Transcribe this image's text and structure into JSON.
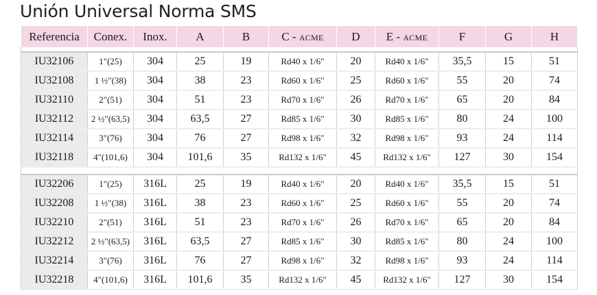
{
  "title": "Unión Universal Norma SMS",
  "headers": [
    "Referencia",
    "Conex.",
    "Inox.",
    "A",
    "B",
    "C - ",
    "D",
    "E - ",
    "F",
    "G",
    "H"
  ],
  "header_smallcaps": {
    "c": "ACME",
    "e": "ACME"
  },
  "groups": [
    {
      "rows": [
        [
          "IU32106",
          "1\"(25)",
          "304",
          "25",
          "19",
          "Rd40 x 1/6\"",
          "20",
          "Rd40 x 1/6\"",
          "35,5",
          "15",
          "51"
        ],
        [
          "IU32108",
          "1 ½\"(38)",
          "304",
          "38",
          "23",
          "Rd60 x 1/6\"",
          "25",
          "Rd60 x 1/6\"",
          "55",
          "20",
          "74"
        ],
        [
          "IU32110",
          "2\"(51)",
          "304",
          "51",
          "23",
          "Rd70 x 1/6\"",
          "26",
          "Rd70 x 1/6\"",
          "65",
          "20",
          "84"
        ],
        [
          "IU32112",
          "2 ½\"(63,5)",
          "304",
          "63,5",
          "27",
          "Rd85 x 1/6\"",
          "30",
          "Rd85 x 1/6\"",
          "80",
          "24",
          "100"
        ],
        [
          "IU32114",
          "3\"(76)",
          "304",
          "76",
          "27",
          "Rd98 x 1/6\"",
          "32",
          "Rd98 x 1/6\"",
          "93",
          "24",
          "114"
        ],
        [
          "IU32118",
          "4\"(101,6)",
          "304",
          "101,6",
          "35",
          "Rd132 x 1/6\"",
          "45",
          "Rd132 x 1/6\"",
          "127",
          "30",
          "154"
        ]
      ]
    },
    {
      "rows": [
        [
          "IU32206",
          "1\"(25)",
          "316L",
          "25",
          "19",
          "Rd40 x 1/6\"",
          "20",
          "Rd40 x 1/6\"",
          "35,5",
          "15",
          "51"
        ],
        [
          "IU32208",
          "1 ½\"(38)",
          "316L",
          "38",
          "23",
          "Rd60 x 1/6\"",
          "25",
          "Rd60 x 1/6\"",
          "55",
          "20",
          "74"
        ],
        [
          "IU32210",
          "2\"(51)",
          "316L",
          "51",
          "23",
          "Rd70 x 1/6\"",
          "26",
          "Rd70 x 1/6\"",
          "65",
          "20",
          "84"
        ],
        [
          "IU32212",
          "2 ½\"(63,5)",
          "316L",
          "63,5",
          "27",
          "Rd85 x 1/6\"",
          "30",
          "Rd85 x 1/6\"",
          "80",
          "24",
          "100"
        ],
        [
          "IU32214",
          "3\"(76)",
          "316L",
          "76",
          "27",
          "Rd98 x 1/6\"",
          "32",
          "Rd98 x 1/6\"",
          "93",
          "24",
          "114"
        ],
        [
          "IU32218",
          "4\"(101,6)",
          "316L",
          "101,6",
          "35",
          "Rd132 x 1/6\"",
          "45",
          "Rd132 x 1/6\"",
          "127",
          "30",
          "154"
        ]
      ]
    }
  ],
  "colors": {
    "header_bg": "#f4d6e4",
    "ref_cell_bg": "#ebebeb"
  }
}
